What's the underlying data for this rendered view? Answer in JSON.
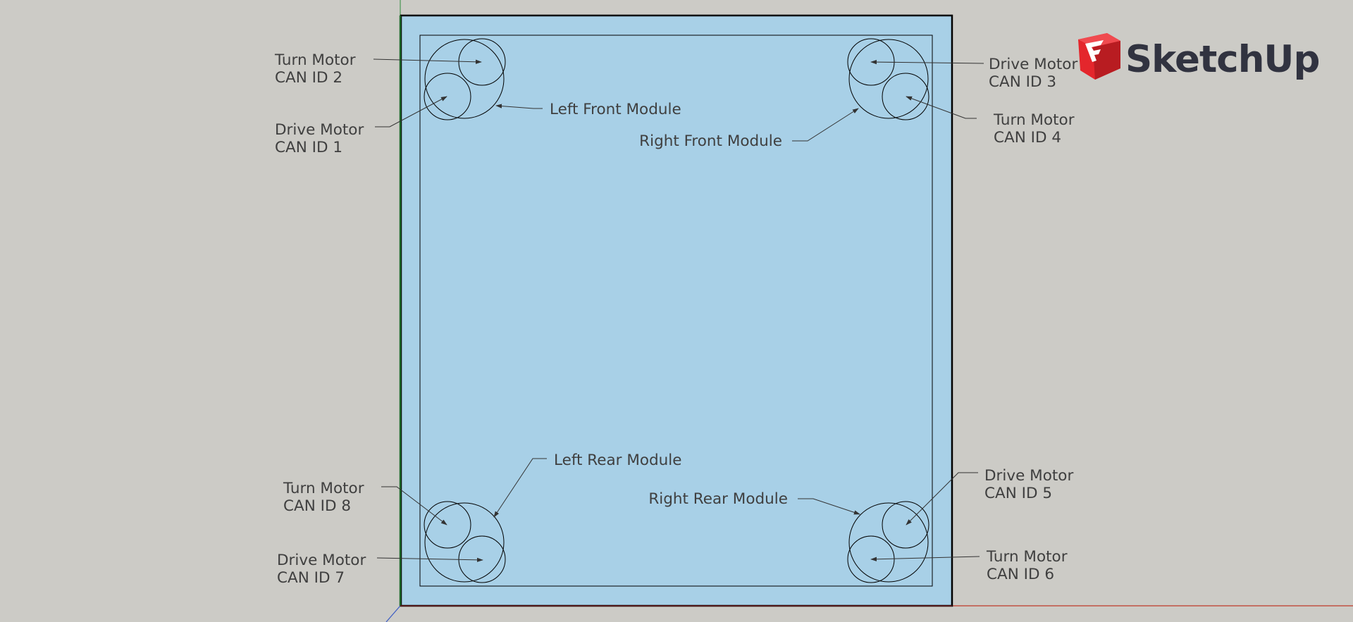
{
  "app": {
    "name": "SketchUp",
    "logo_text": "SketchUp",
    "colors": {
      "background": "#cccbc6",
      "frame_fill": "#a8d0e7",
      "frame_stroke": "#000000",
      "logo_red": "#e4262c",
      "logo_text": "#313340",
      "axis_red": "#c0392b",
      "axis_green": "#2e8b3a",
      "axis_blue": "#3b5bc4"
    }
  },
  "labels": {
    "lf_module": "Left Front Module",
    "rf_module": "Right Front Module",
    "lr_module": "Left Rear Module",
    "rr_module": "Right Rear Module",
    "lf_turn": [
      "Turn Motor",
      "CAN ID 2"
    ],
    "lf_drive": [
      "Drive Motor",
      "CAN ID 1"
    ],
    "rf_drive": [
      "Drive Motor",
      "CAN ID 3"
    ],
    "rf_turn": [
      "Turn Motor",
      "CAN ID 4"
    ],
    "lr_turn": [
      "Turn Motor",
      "CAN ID 8"
    ],
    "lr_drive": [
      "Drive Motor",
      "CAN ID 7"
    ],
    "rr_drive": [
      "Drive Motor",
      "CAN ID 5"
    ],
    "rr_turn": [
      "Turn Motor",
      "CAN ID 6"
    ]
  }
}
